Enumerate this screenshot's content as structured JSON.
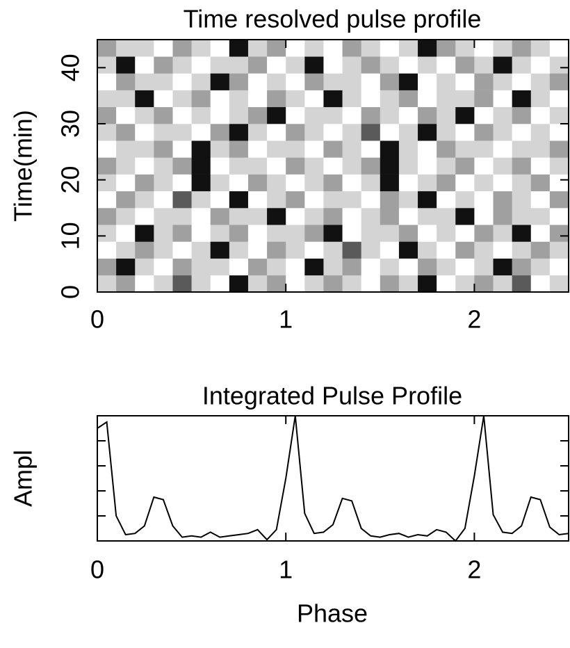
{
  "chart_data": [
    {
      "type": "heatmap",
      "title": "Time resolved pulse profile",
      "ylabel": "Time(min)",
      "xlim": [
        0,
        2.5
      ],
      "ylim": [
        0,
        45
      ],
      "xticks": [
        0,
        1,
        2
      ],
      "yticks": [
        0,
        10,
        20,
        30,
        40
      ],
      "colorscale": [
        "#ffffff",
        "#d4d4d4",
        "#a0a0a0",
        "#5a5a5a",
        "#111111"
      ],
      "z": [
        [
          1,
          2,
          0,
          1,
          3,
          1,
          0,
          4,
          1,
          2,
          0,
          1,
          2,
          1,
          0,
          2,
          1,
          4,
          0,
          1,
          2,
          1,
          3,
          0,
          1
        ],
        [
          2,
          4,
          1,
          0,
          2,
          1,
          1,
          0,
          2,
          1,
          0,
          4,
          1,
          2,
          0,
          1,
          0,
          2,
          1,
          0,
          1,
          4,
          2,
          1,
          0
        ],
        [
          0,
          1,
          2,
          1,
          0,
          1,
          4,
          1,
          0,
          2,
          1,
          0,
          1,
          3,
          1,
          0,
          4,
          1,
          0,
          2,
          1,
          0,
          1,
          2,
          1
        ],
        [
          1,
          0,
          4,
          1,
          2,
          0,
          1,
          2,
          0,
          1,
          1,
          2,
          4,
          0,
          1,
          1,
          2,
          0,
          1,
          0,
          2,
          1,
          4,
          0,
          2
        ],
        [
          2,
          1,
          0,
          1,
          1,
          0,
          2,
          1,
          1,
          4,
          0,
          1,
          2,
          0,
          1,
          2,
          0,
          1,
          1,
          4,
          0,
          2,
          1,
          1,
          0
        ],
        [
          0,
          2,
          1,
          0,
          3,
          1,
          0,
          4,
          0,
          1,
          2,
          0,
          1,
          1,
          0,
          2,
          1,
          4,
          0,
          1,
          0,
          2,
          1,
          0,
          2
        ],
        [
          1,
          0,
          2,
          1,
          0,
          4,
          1,
          0,
          2,
          1,
          0,
          1,
          2,
          0,
          1,
          4,
          0,
          1,
          2,
          0,
          1,
          0,
          1,
          2,
          0
        ],
        [
          2,
          1,
          0,
          1,
          2,
          4,
          0,
          1,
          1,
          0,
          2,
          1,
          0,
          1,
          2,
          4,
          1,
          0,
          1,
          2,
          0,
          1,
          2,
          0,
          1
        ],
        [
          0,
          1,
          1,
          2,
          0,
          4,
          1,
          2,
          0,
          1,
          1,
          0,
          2,
          1,
          0,
          4,
          1,
          0,
          2,
          1,
          1,
          0,
          1,
          1,
          2
        ],
        [
          1,
          2,
          0,
          1,
          1,
          0,
          2,
          4,
          1,
          0,
          2,
          1,
          0,
          1,
          3,
          0,
          1,
          4,
          1,
          0,
          2,
          1,
          0,
          1,
          0
        ],
        [
          2,
          0,
          1,
          2,
          0,
          1,
          0,
          1,
          2,
          4,
          0,
          1,
          1,
          0,
          2,
          1,
          0,
          2,
          1,
          4,
          0,
          1,
          2,
          0,
          1
        ],
        [
          1,
          1,
          4,
          0,
          1,
          2,
          0,
          1,
          0,
          2,
          1,
          0,
          4,
          1,
          0,
          1,
          2,
          0,
          1,
          1,
          2,
          0,
          4,
          1,
          0
        ],
        [
          0,
          2,
          1,
          1,
          0,
          1,
          4,
          2,
          0,
          1,
          0,
          2,
          1,
          1,
          0,
          2,
          4,
          0,
          1,
          0,
          2,
          1,
          0,
          1,
          2
        ],
        [
          1,
          4,
          0,
          2,
          1,
          0,
          1,
          1,
          2,
          0,
          1,
          4,
          0,
          1,
          2,
          1,
          0,
          1,
          0,
          2,
          1,
          4,
          1,
          0,
          1
        ],
        [
          2,
          1,
          1,
          0,
          2,
          1,
          0,
          4,
          1,
          2,
          0,
          1,
          0,
          2,
          1,
          0,
          1,
          4,
          2,
          1,
          0,
          1,
          2,
          1,
          0
        ]
      ]
    },
    {
      "type": "line",
      "title": "Integrated Pulse Profile",
      "xlabel": "Phase",
      "ylabel": "Ampl",
      "xlim": [
        0,
        2.5
      ],
      "ylim": [
        0,
        10
      ],
      "xticks": [
        0,
        1,
        2
      ],
      "yticks": [
        0,
        2,
        4,
        6,
        8,
        10
      ],
      "color": "#000000",
      "x": [
        0,
        0.05,
        0.1,
        0.15,
        0.2,
        0.25,
        0.3,
        0.35,
        0.4,
        0.45,
        0.5,
        0.55,
        0.6,
        0.65,
        0.7,
        0.75,
        0.8,
        0.85,
        0.9,
        0.95,
        1,
        1.05,
        1.1,
        1.15,
        1.2,
        1.25,
        1.3,
        1.35,
        1.4,
        1.45,
        1.5,
        1.55,
        1.6,
        1.65,
        1.7,
        1.75,
        1.8,
        1.85,
        1.9,
        1.95,
        2,
        2.05,
        2.1,
        2.15,
        2.2,
        2.25,
        2.3,
        2.35,
        2.4,
        2.45,
        2.5
      ],
      "values": [
        9.0,
        9.5,
        2.0,
        0.5,
        0.6,
        1.2,
        3.5,
        3.3,
        1.2,
        0.3,
        0.4,
        0.3,
        0.7,
        0.3,
        0.4,
        0.5,
        0.6,
        0.9,
        0.1,
        0.9,
        5.0,
        10,
        2.2,
        0.6,
        0.7,
        1.3,
        3.4,
        3.2,
        1.0,
        0.4,
        0.3,
        0.5,
        0.6,
        0.3,
        0.5,
        0.4,
        0.9,
        0.7,
        0.0,
        1.0,
        5.2,
        10,
        2.1,
        0.7,
        0.6,
        1.2,
        3.5,
        3.3,
        1.1,
        0.5,
        0.6
      ]
    }
  ]
}
